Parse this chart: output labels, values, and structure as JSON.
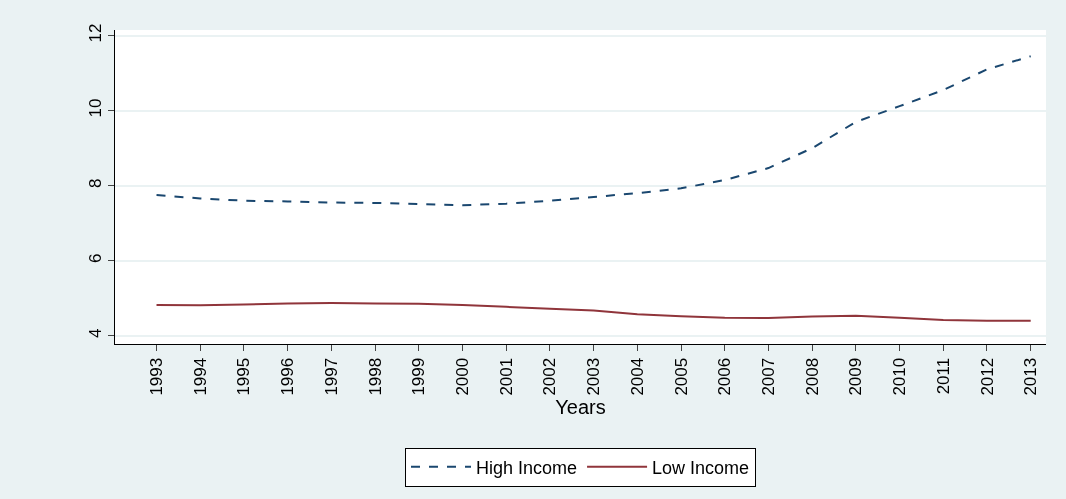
{
  "chart_data": {
    "type": "line",
    "xlabel": "Years",
    "categories": [
      "1993",
      "1994",
      "1995",
      "1996",
      "1997",
      "1998",
      "1999",
      "2000",
      "2001",
      "2002",
      "2003",
      "2004",
      "2005",
      "2006",
      "2007",
      "2008",
      "2009",
      "2010",
      "2011",
      "2012",
      "2013"
    ],
    "series": [
      {
        "name": "High Income",
        "color": "#1a476f",
        "line_style": "dashed",
        "values": [
          7.75,
          7.66,
          7.6,
          7.58,
          7.55,
          7.54,
          7.51,
          7.48,
          7.52,
          7.6,
          7.7,
          7.8,
          7.93,
          8.15,
          8.47,
          9.0,
          9.7,
          10.12,
          10.55,
          11.1,
          11.45
        ]
      },
      {
        "name": "Low Income",
        "color": "#90353b",
        "line_style": "solid",
        "values": [
          4.82,
          4.81,
          4.83,
          4.86,
          4.87,
          4.86,
          4.85,
          4.82,
          4.77,
          4.72,
          4.67,
          4.57,
          4.52,
          4.48,
          4.47,
          4.51,
          4.53,
          4.48,
          4.42,
          4.4,
          4.4
        ]
      }
    ],
    "ylim": [
      3.78,
      12.15
    ],
    "yticks": [
      4,
      6,
      8,
      10,
      12
    ],
    "grid": "y",
    "legend": "bottom",
    "marker": "none"
  }
}
